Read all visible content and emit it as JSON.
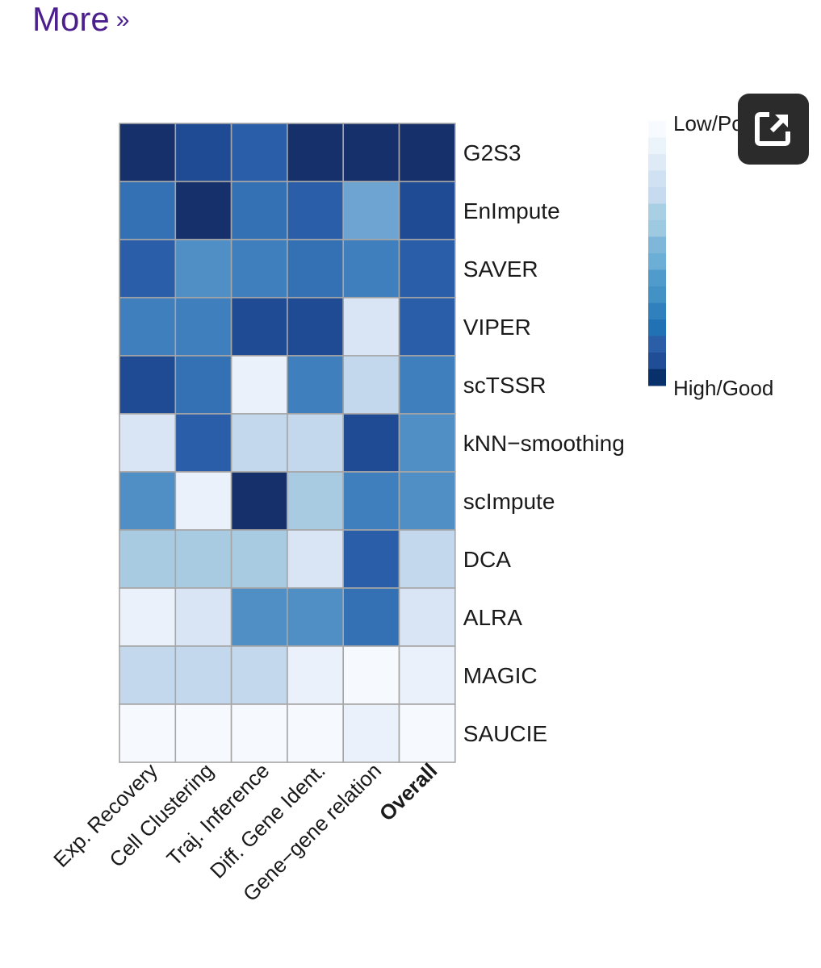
{
  "nav": {
    "more_label": "More",
    "more_chevron": "»"
  },
  "expand_button": {
    "icon": "expand-icon"
  },
  "chart_data": {
    "type": "heatmap",
    "rows": [
      "G2S3",
      "EnImpute",
      "SAVER",
      "VIPER",
      "scTSSR",
      "kNN−smoothing",
      "scImpute",
      "DCA",
      "ALRA",
      "MAGIC",
      "SAUCIE"
    ],
    "columns": [
      "Exp. Recovery",
      "Cell Clustering",
      "Traj. Inference",
      "Diff. Gene Ident.",
      "Gene−gene relation",
      "Overall"
    ],
    "bold_column": "Overall",
    "value_scale": "1 = High/Good, 11 = Low/Poor",
    "values": [
      [
        1,
        2,
        3,
        1,
        1,
        1
      ],
      [
        4,
        1,
        4,
        3,
        7,
        2
      ],
      [
        3,
        6,
        5,
        4,
        5,
        3
      ],
      [
        5,
        5,
        2,
        2,
        10,
        3
      ],
      [
        2,
        4,
        11,
        5,
        9,
        5
      ],
      [
        10,
        3,
        9,
        9,
        2,
        6
      ],
      [
        6,
        11,
        1,
        8,
        5,
        6
      ],
      [
        8,
        8,
        8,
        10,
        3,
        9
      ],
      [
        11,
        10,
        6,
        6,
        4,
        10
      ],
      [
        9,
        9,
        9,
        11,
        12,
        11
      ],
      [
        12,
        12,
        12,
        12,
        11,
        12
      ]
    ],
    "legend": {
      "low_label": "Low/Poor",
      "high_label": "High/Good"
    },
    "palette": [
      "#f7fbff",
      "#ebf3fb",
      "#deebf7",
      "#cfe1f2",
      "#c6dbef",
      "#a9cfe5",
      "#9ecae1",
      "#7fb7da",
      "#6baed6",
      "#4f9bcb",
      "#4292c6",
      "#3080bd",
      "#2171b5",
      "#2a5fa8",
      "#1f4e96",
      "#08306b"
    ]
  }
}
